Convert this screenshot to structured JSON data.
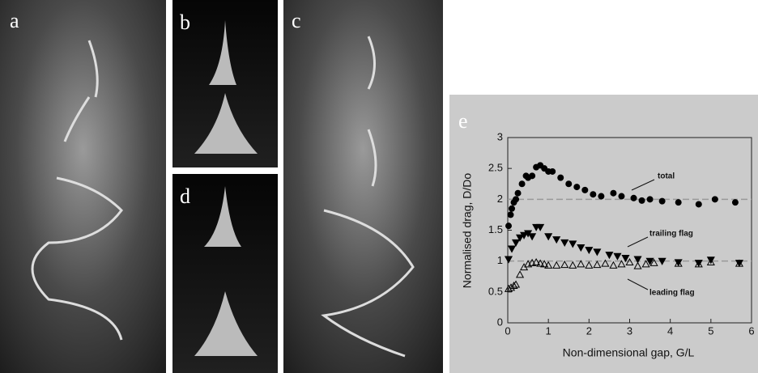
{
  "panel_labels": [
    "a",
    "b",
    "c",
    "d"
  ],
  "chart_data": {
    "type": "scatter",
    "panel_label": "e",
    "xlabel": "Non-dimensional gap, G/L",
    "ylabel": "Normalised drag, D/Do",
    "xlim": [
      0,
      6
    ],
    "ylim": [
      0,
      3
    ],
    "xticks": [
      0,
      1,
      2,
      3,
      4,
      5,
      6
    ],
    "yticks": [
      0,
      0.5,
      1,
      1.5,
      2,
      2.5,
      3
    ],
    "reference_lines": [
      2,
      1
    ],
    "series": [
      {
        "name": "total",
        "color": "#000000",
        "marker": "circle",
        "filled": true,
        "x": [
          0.02,
          0.07,
          0.1,
          0.15,
          0.2,
          0.25,
          0.35,
          0.45,
          0.5,
          0.6,
          0.7,
          0.8,
          0.9,
          1.0,
          1.1,
          1.3,
          1.5,
          1.7,
          1.9,
          2.1,
          2.3,
          2.6,
          2.8,
          3.1,
          3.3,
          3.5,
          3.8,
          4.2,
          4.7,
          5.1,
          5.6
        ],
        "values": [
          1.57,
          1.75,
          1.85,
          1.95,
          2.0,
          2.1,
          2.25,
          2.38,
          2.35,
          2.38,
          2.52,
          2.55,
          2.5,
          2.45,
          2.45,
          2.35,
          2.25,
          2.2,
          2.15,
          2.08,
          2.05,
          2.1,
          2.05,
          2.02,
          1.98,
          2.0,
          1.97,
          1.95,
          1.92,
          2.0,
          1.95
        ]
      },
      {
        "name": "trailing flag",
        "color": "#000000",
        "marker": "triangle-down",
        "filled": true,
        "x": [
          0.02,
          0.1,
          0.2,
          0.3,
          0.4,
          0.5,
          0.6,
          0.7,
          0.8,
          1.0,
          1.2,
          1.4,
          1.6,
          1.8,
          2.0,
          2.2,
          2.5,
          2.7,
          2.9,
          3.2,
          3.5,
          3.8,
          4.2,
          4.7,
          5.0,
          5.7
        ],
        "values": [
          1.03,
          1.2,
          1.3,
          1.38,
          1.42,
          1.45,
          1.4,
          1.55,
          1.55,
          1.4,
          1.35,
          1.3,
          1.28,
          1.22,
          1.18,
          1.15,
          1.1,
          1.08,
          1.05,
          1.03,
          1.0,
          1.0,
          0.98,
          0.97,
          1.02,
          0.97
        ]
      },
      {
        "name": "leading flag",
        "color": "#000000",
        "marker": "triangle-up",
        "filled": false,
        "x": [
          0.02,
          0.08,
          0.15,
          0.2,
          0.3,
          0.4,
          0.5,
          0.6,
          0.7,
          0.8,
          0.9,
          1.0,
          1.2,
          1.4,
          1.6,
          1.8,
          2.0,
          2.2,
          2.4,
          2.6,
          2.8,
          3.0,
          3.2,
          3.4,
          3.6,
          4.2,
          4.7,
          5.0,
          5.7
        ],
        "values": [
          0.55,
          0.57,
          0.6,
          0.62,
          0.78,
          0.9,
          0.95,
          0.97,
          0.98,
          0.96,
          0.95,
          0.93,
          0.93,
          0.94,
          0.93,
          0.95,
          0.93,
          0.94,
          0.96,
          0.93,
          0.95,
          0.98,
          0.92,
          0.95,
          0.97,
          0.96,
          0.95,
          0.98,
          0.96
        ]
      }
    ]
  }
}
